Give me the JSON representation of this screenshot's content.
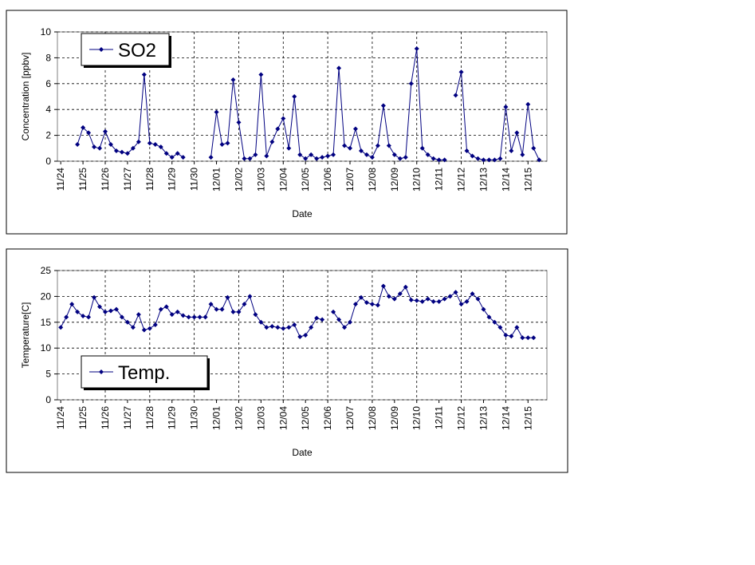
{
  "chart_data": [
    {
      "type": "line",
      "xlabel": "Date",
      "ylabel": "Concentration [ppbv]",
      "grid": true,
      "legend": "upper left",
      "xlim": [
        -0.15,
        21.85
      ],
      "ylim": [
        0,
        10
      ],
      "yticks": [
        0,
        2,
        4,
        6,
        8,
        10
      ],
      "xticks": [
        {
          "value": 0,
          "label": "11/24"
        },
        {
          "value": 1,
          "label": "11/25"
        },
        {
          "value": 2,
          "label": "11/26"
        },
        {
          "value": 3,
          "label": "11/27"
        },
        {
          "value": 4,
          "label": "11/28"
        },
        {
          "value": 5,
          "label": "11/29"
        },
        {
          "value": 6,
          "label": "11/30"
        },
        {
          "value": 7,
          "label": "12/01"
        },
        {
          "value": 8,
          "label": "12/02"
        },
        {
          "value": 9,
          "label": "12/03"
        },
        {
          "value": 10,
          "label": "12/04"
        },
        {
          "value": 11,
          "label": "12/05"
        },
        {
          "value": 12,
          "label": "12/06"
        },
        {
          "value": 13,
          "label": "12/07"
        },
        {
          "value": 14,
          "label": "12/08"
        },
        {
          "value": 15,
          "label": "12/09"
        },
        {
          "value": 16,
          "label": "12/10"
        },
        {
          "value": 17,
          "label": "12/11"
        },
        {
          "value": 18,
          "label": "12/12"
        },
        {
          "value": 19,
          "label": "12/13"
        },
        {
          "value": 20,
          "label": "12/14"
        },
        {
          "value": 21,
          "label": "12/15"
        }
      ],
      "x": [
        0.75,
        1,
        1.25,
        1.5,
        1.75,
        2,
        2.25,
        2.5,
        2.75,
        3,
        3.25,
        3.5,
        3.75,
        4,
        4.25,
        4.5,
        4.75,
        5,
        5.25,
        5.5,
        6,
        6.75,
        7,
        7.25,
        7.5,
        7.75,
        8,
        8.25,
        8.5,
        8.75,
        9,
        9.25,
        9.5,
        9.75,
        10,
        10.25,
        10.5,
        10.75,
        11,
        11.25,
        11.5,
        11.75,
        12,
        12.25,
        12.5,
        12.75,
        13,
        13.25,
        13.5,
        13.75,
        14,
        14.25,
        14.5,
        14.75,
        15,
        15.25,
        15.5,
        15.75,
        16,
        16.25,
        16.5,
        16.75,
        17,
        17.25,
        17.5,
        17.75,
        18,
        18.25,
        18.5,
        18.75,
        19,
        19.25,
        19.5,
        19.75,
        20,
        20.25,
        20.5,
        20.75,
        21,
        21.25,
        21.5
      ],
      "series": [
        {
          "name": "SO2",
          "color": "#000080",
          "values": [
            1.3,
            2.6,
            2.2,
            1.1,
            1.0,
            2.3,
            1.3,
            0.8,
            0.7,
            0.6,
            1.0,
            1.5,
            6.7,
            1.4,
            1.3,
            1.1,
            0.6,
            0.3,
            0.6,
            0.3,
            null,
            0.3,
            3.8,
            1.3,
            1.4,
            6.3,
            3.0,
            0.2,
            0.2,
            0.5,
            6.7,
            0.4,
            1.5,
            2.5,
            3.3,
            1.0,
            5.0,
            0.5,
            0.2,
            0.5,
            0.2,
            0.3,
            0.4,
            0.5,
            7.2,
            1.2,
            1.0,
            2.5,
            0.8,
            0.5,
            0.3,
            1.2,
            4.3,
            1.2,
            0.5,
            0.2,
            0.3,
            6.0,
            8.7,
            1.0,
            0.5,
            0.2,
            0.1,
            0.1,
            null,
            5.1,
            6.9,
            0.8,
            0.4,
            0.2,
            0.1,
            0.1,
            0.1,
            0.2,
            4.2,
            0.8,
            2.2,
            0.5,
            4.4,
            1.0,
            0.1
          ]
        }
      ]
    },
    {
      "type": "line",
      "xlabel": "Date",
      "ylabel": "Temperature[C]",
      "grid": true,
      "legend": "lower left",
      "xlim": [
        -0.15,
        21.85
      ],
      "ylim": [
        0,
        25
      ],
      "yticks": [
        0,
        5,
        10,
        15,
        20,
        25
      ],
      "xticks": [
        {
          "value": 0,
          "label": "11/24"
        },
        {
          "value": 1,
          "label": "11/25"
        },
        {
          "value": 2,
          "label": "11/26"
        },
        {
          "value": 3,
          "label": "11/27"
        },
        {
          "value": 4,
          "label": "11/28"
        },
        {
          "value": 5,
          "label": "11/29"
        },
        {
          "value": 6,
          "label": "11/30"
        },
        {
          "value": 7,
          "label": "12/01"
        },
        {
          "value": 8,
          "label": "12/02"
        },
        {
          "value": 9,
          "label": "12/03"
        },
        {
          "value": 10,
          "label": "12/04"
        },
        {
          "value": 11,
          "label": "12/05"
        },
        {
          "value": 12,
          "label": "12/06"
        },
        {
          "value": 13,
          "label": "12/07"
        },
        {
          "value": 14,
          "label": "12/08"
        },
        {
          "value": 15,
          "label": "12/09"
        },
        {
          "value": 16,
          "label": "12/10"
        },
        {
          "value": 17,
          "label": "12/11"
        },
        {
          "value": 18,
          "label": "12/12"
        },
        {
          "value": 19,
          "label": "12/13"
        },
        {
          "value": 20,
          "label": "12/14"
        },
        {
          "value": 21,
          "label": "12/15"
        }
      ],
      "x": [
        0,
        0.25,
        0.5,
        0.75,
        1,
        1.25,
        1.5,
        1.75,
        2,
        2.25,
        2.5,
        2.75,
        3,
        3.25,
        3.5,
        3.75,
        4,
        4.25,
        4.5,
        4.75,
        5,
        5.25,
        5.5,
        5.75,
        6,
        6.25,
        6.5,
        6.75,
        7,
        7.25,
        7.5,
        7.75,
        8,
        8.25,
        8.5,
        8.75,
        9,
        9.25,
        9.5,
        9.75,
        10,
        10.25,
        10.5,
        10.75,
        11,
        11.25,
        11.5,
        11.75,
        12,
        12.25,
        12.5,
        12.75,
        13,
        13.25,
        13.5,
        13.75,
        14,
        14.25,
        14.5,
        14.75,
        15,
        15.25,
        15.5,
        15.75,
        16,
        16.25,
        16.5,
        16.75,
        17,
        17.25,
        17.5,
        17.75,
        18,
        18.25,
        18.5,
        18.75,
        19,
        19.25,
        19.5,
        19.75,
        20,
        20.25,
        20.5,
        20.75,
        21,
        21.25
      ],
      "series": [
        {
          "name": "Temp.",
          "color": "#000080",
          "values": [
            14,
            16,
            18.5,
            17,
            16.2,
            16,
            19.8,
            18,
            17,
            17.2,
            17.5,
            16,
            15,
            14,
            16.5,
            13.5,
            13.8,
            14.5,
            17.5,
            18,
            16.5,
            17,
            16.3,
            16,
            16,
            16,
            16,
            18.5,
            17.5,
            17.5,
            19.8,
            17,
            17,
            18.5,
            20,
            16.5,
            15,
            14,
            14.2,
            14,
            13.8,
            14,
            14.5,
            12.2,
            12.5,
            14,
            15.8,
            15.5,
            null,
            17,
            15.5,
            14,
            15,
            18.5,
            19.8,
            18.8,
            18.5,
            18.3,
            22,
            20,
            19.5,
            20.5,
            21.8,
            19.3,
            19.2,
            19,
            19.5,
            19,
            19,
            19.5,
            20,
            20.8,
            18.5,
            19,
            20.5,
            19.5,
            17.5,
            16,
            15,
            14,
            12.5,
            12.3,
            14,
            12,
            12,
            12
          ]
        }
      ]
    }
  ]
}
